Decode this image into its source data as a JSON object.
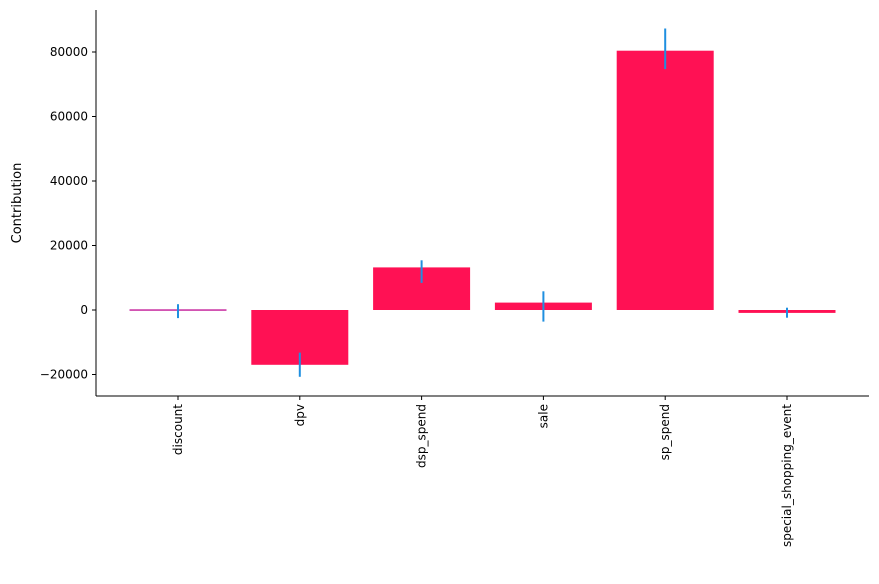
{
  "chart_data": {
    "type": "bar",
    "title": "",
    "xlabel": "",
    "ylabel": "Contribution",
    "ylim": [
      -26000,
      93000
    ],
    "yticks": [
      -20000,
      0,
      20000,
      40000,
      60000,
      80000
    ],
    "ytick_labels": [
      "−20000",
      "0",
      "20000",
      "40000",
      "60000",
      "80000"
    ],
    "categories": [
      "discount",
      "dpv",
      "dsp_spend",
      "sale",
      "sp_spend",
      "special_shopping_event"
    ],
    "values": [
      300,
      -17000,
      13200,
      2300,
      80400,
      -900
    ],
    "error_low": [
      -2500,
      -20700,
      8400,
      -3600,
      74700,
      -2400
    ],
    "error_high": [
      1800,
      -13200,
      15400,
      5800,
      87300,
      700
    ],
    "grid": false,
    "legend": "none",
    "colors": {
      "bar": "#ff1154",
      "thin_bar": "#c72aa0",
      "error": "#1f8fe0",
      "axis": "#000000"
    }
  }
}
